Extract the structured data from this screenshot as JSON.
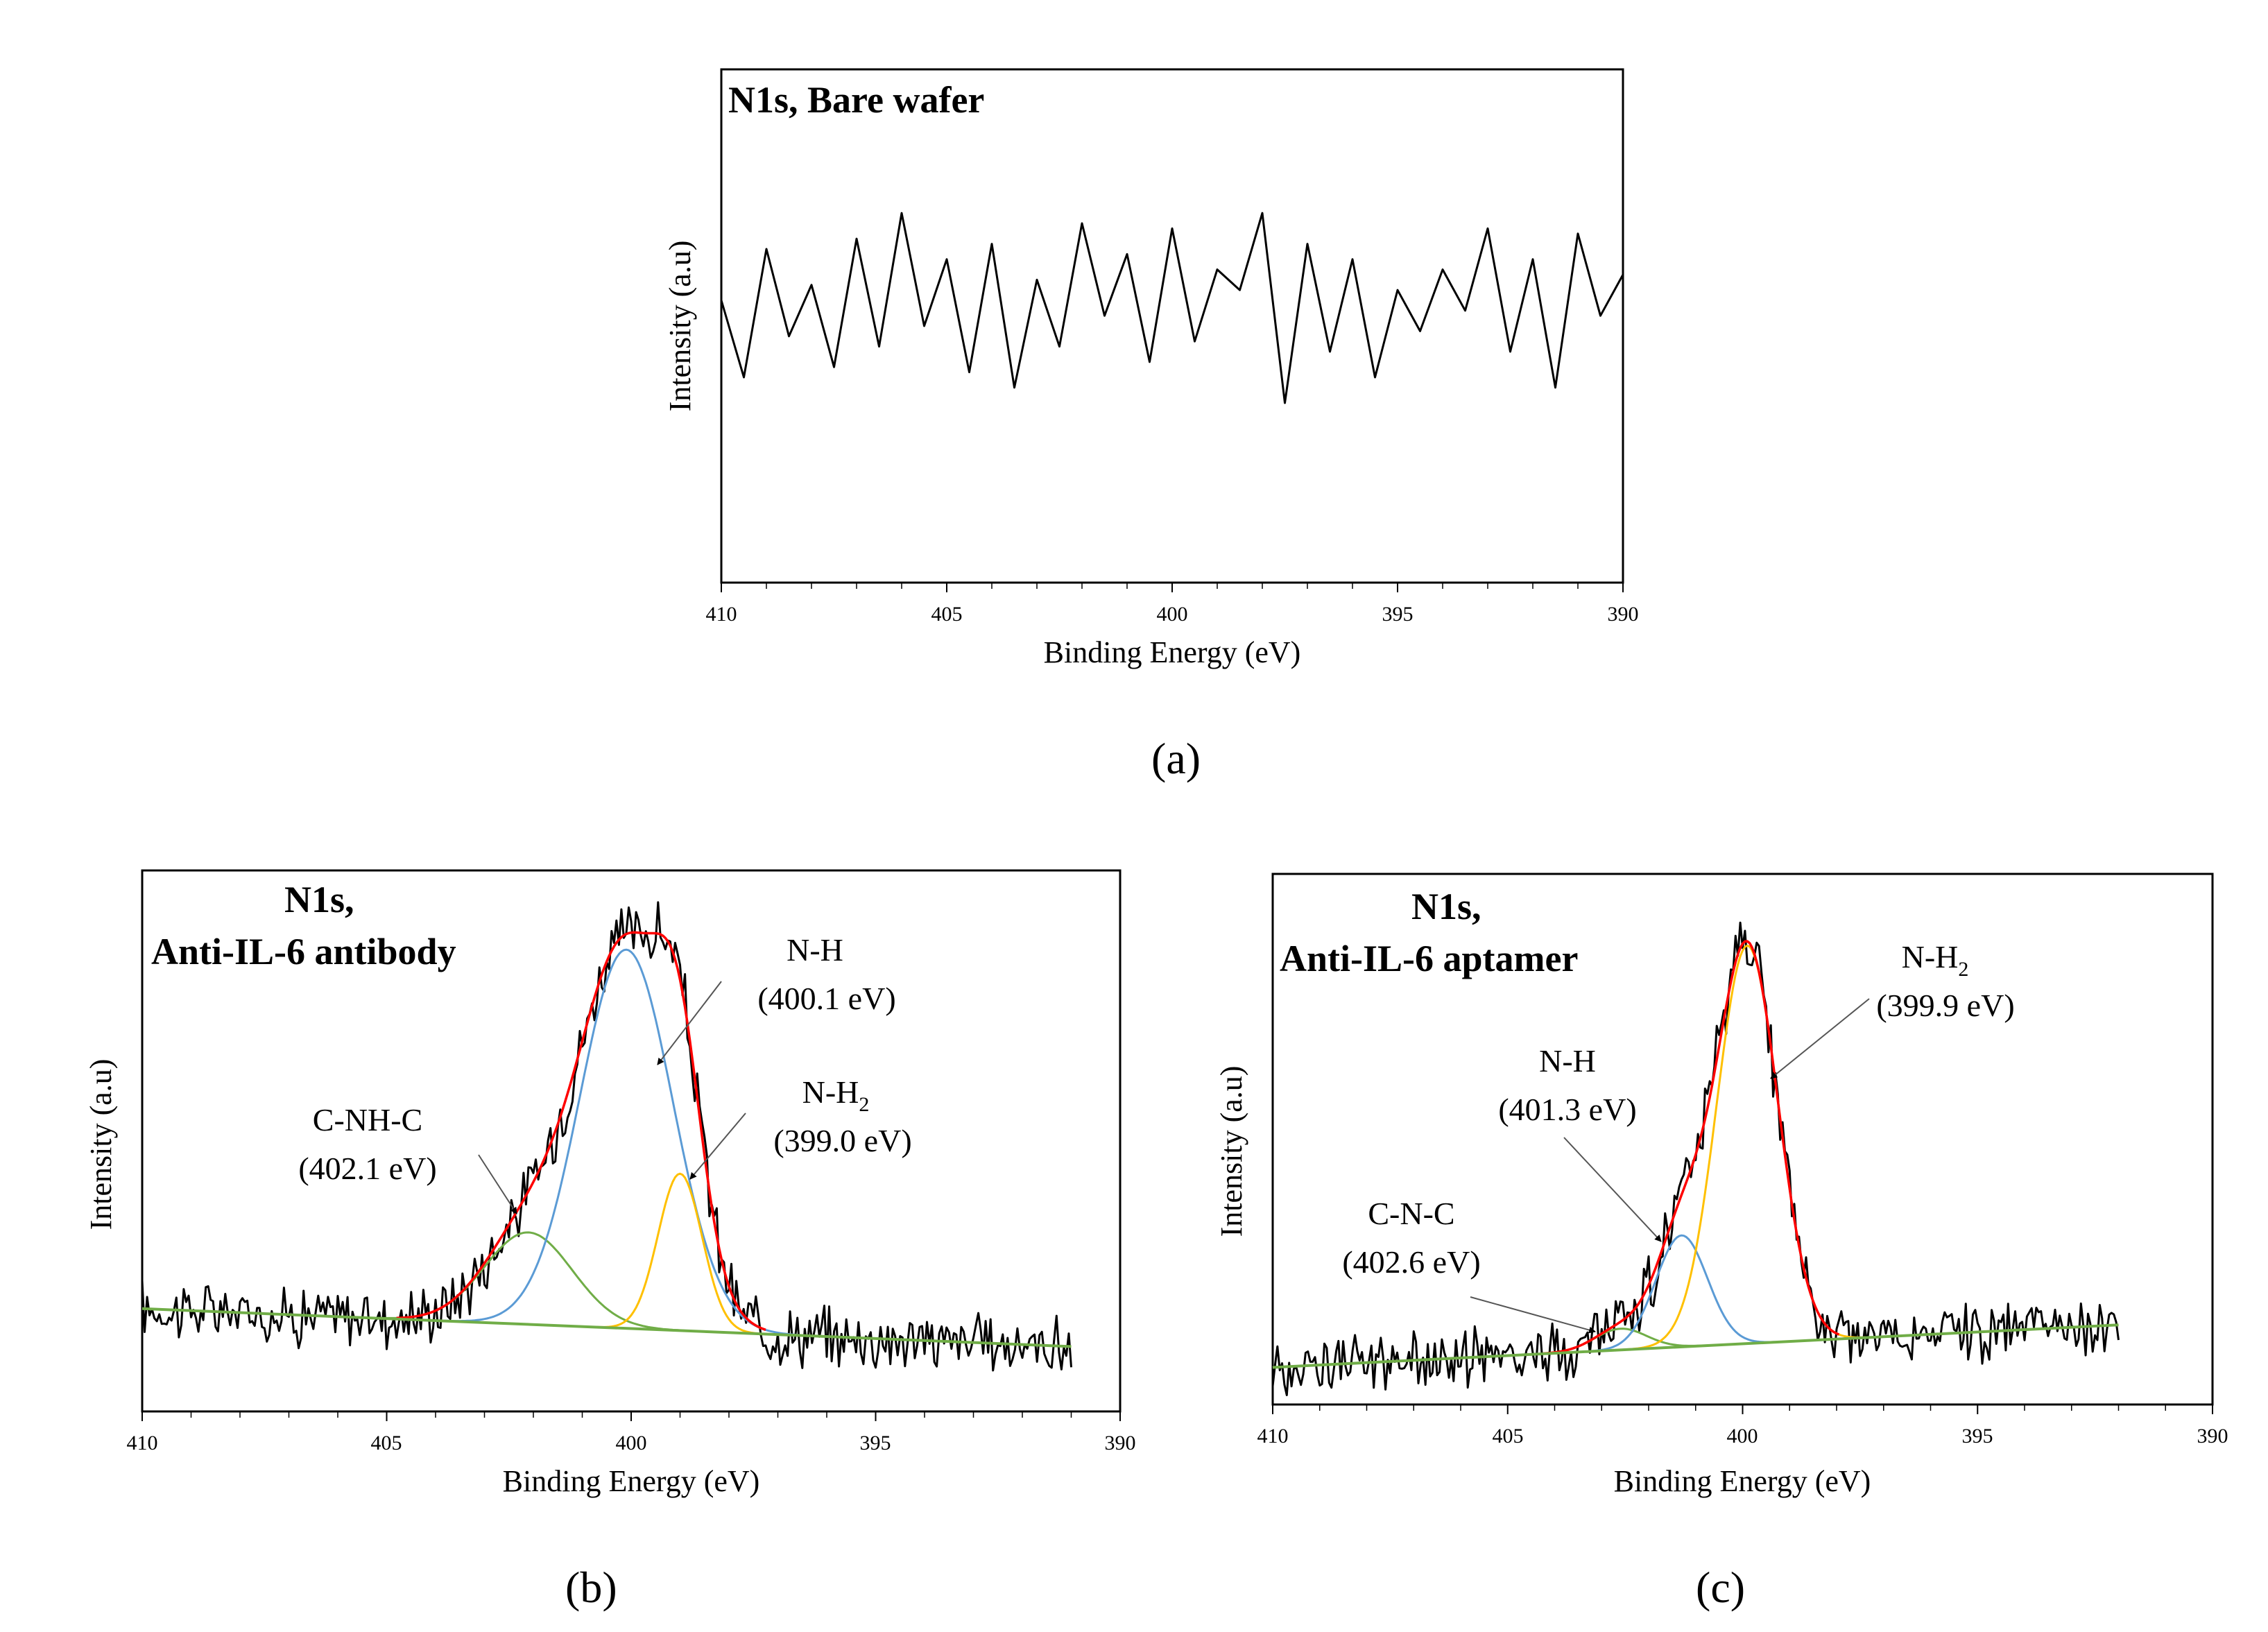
{
  "chart_data": [
    {
      "panel": "(a)",
      "type": "line",
      "title_lines": [
        "N1s, Bare wafer"
      ],
      "xlabel": "Binding Energy (eV)",
      "ylabel": "Intensity (a.u)",
      "xlim": [
        410,
        390
      ],
      "x_ticks": [
        "410",
        "405",
        "400",
        "395",
        "390"
      ],
      "ylim": [
        0,
        100
      ],
      "series": [
        {
          "color": "#000000",
          "x": [
            410,
            409.5,
            409.0,
            408.5,
            408.0,
            407.5,
            407.0,
            406.5,
            406.0,
            405.5,
            405.0,
            404.5,
            404.0,
            403.5,
            403.0,
            402.5,
            402.0,
            401.5,
            401.0,
            400.5,
            400.0,
            399.5,
            399.0,
            398.5,
            398.0,
            397.5,
            397.0,
            396.5,
            396.0,
            395.5,
            395.0,
            394.5,
            394.0,
            393.5,
            393.0,
            392.5,
            392.0,
            391.5,
            391.0,
            390.5,
            390.0
          ],
          "y": [
            55,
            40,
            65,
            48,
            58,
            42,
            67,
            46,
            72,
            50,
            63,
            41,
            66,
            38,
            59,
            46,
            70,
            52,
            64,
            43,
            69,
            47,
            61,
            57,
            72,
            35,
            66,
            45,
            63,
            40,
            57,
            49,
            61,
            53,
            69,
            45,
            63,
            38,
            68,
            52,
            60
          ]
        }
      ]
    },
    {
      "panel": "(b)",
      "type": "line",
      "title_lines": [
        "N1s,",
        "Anti-IL-6 antibody"
      ],
      "xlabel": "Binding Energy (eV)",
      "ylabel": "Intensity (a.u)",
      "xlim": [
        410,
        390
      ],
      "x_ticks": [
        "410",
        "405",
        "400",
        "395",
        "390"
      ],
      "ylim": [
        0,
        100
      ],
      "baseline": {
        "start": [
          410,
          19
        ],
        "end": [
          391,
          12
        ]
      },
      "peaks": [
        {
          "name": "C-NH-C",
          "center": 402.1,
          "height": 17,
          "sigma": 0.9,
          "color": "#70AD47"
        },
        {
          "name": "N-H",
          "center": 400.1,
          "height": 70,
          "sigma": 0.95,
          "color": "#5B9BD5"
        },
        {
          "name": "N-H2",
          "center": 399.0,
          "height": 29,
          "sigma": 0.45,
          "color": "#FFC000"
        }
      ],
      "envelope_color": "#FF0000",
      "raw_color": "#000000",
      "annotations": [
        {
          "label": "C-NH-C",
          "value": "(402.1 eV)",
          "target_x": 402.4
        },
        {
          "label": "N-H",
          "value": "(400.1 eV)",
          "target_x": 399.7
        },
        {
          "label": "N-H",
          "sub": "2",
          "value": "(399.0 eV)",
          "target_x": 398.7
        }
      ]
    },
    {
      "panel": "(c)",
      "type": "line",
      "title_lines": [
        "N1s,",
        "Anti-IL-6 aptamer"
      ],
      "xlabel": "Binding Energy (eV)",
      "ylabel": "Intensity (a.u)",
      "xlim": [
        410,
        390
      ],
      "x_ticks": [
        "410",
        "405",
        "400",
        "395",
        "390"
      ],
      "ylim": [
        0,
        100
      ],
      "baseline": {
        "start": [
          410,
          7
        ],
        "end": [
          392,
          15
        ]
      },
      "peaks": [
        {
          "name": "C-N-C",
          "center": 402.6,
          "height": 4,
          "sigma": 0.55,
          "color": "#70AD47"
        },
        {
          "name": "N-H",
          "center": 401.3,
          "height": 21,
          "sigma": 0.55,
          "color": "#5B9BD5"
        },
        {
          "name": "N-H2",
          "center": 399.9,
          "height": 75,
          "sigma": 0.65,
          "color": "#FFC000"
        }
      ],
      "envelope_color": "#FF0000",
      "raw_color": "#000000",
      "annotations": [
        {
          "label": "C-N-C",
          "value": "(402.6 eV)",
          "target_x": 403.0
        },
        {
          "label": "N-H",
          "value": "(401.3 eV)",
          "target_x": 401.7
        },
        {
          "label": "N-H",
          "sub": "2",
          "value": "(399.9 eV)",
          "target_x": 399.2
        }
      ]
    }
  ]
}
